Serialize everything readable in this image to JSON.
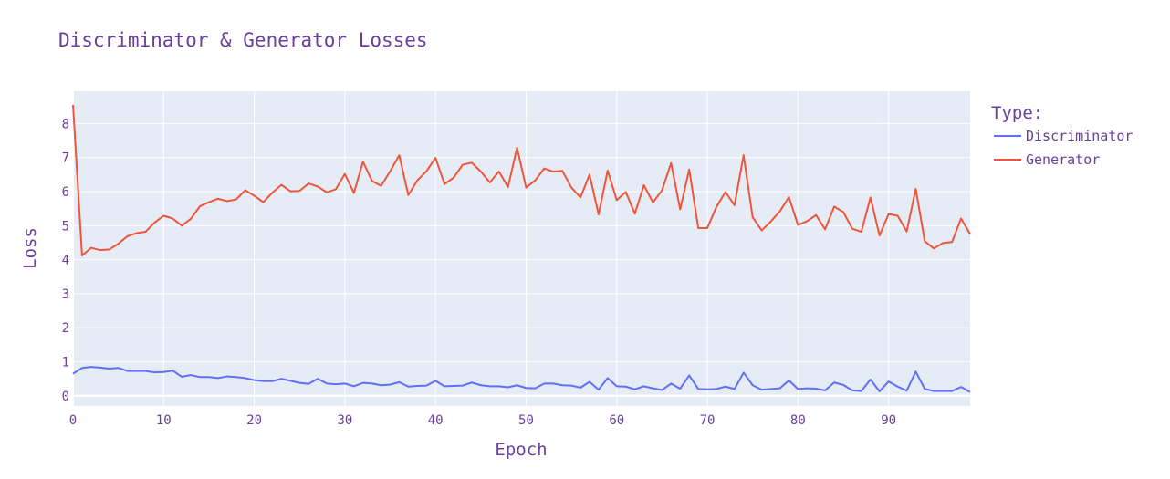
{
  "chart_data": {
    "type": "line",
    "title": "Discriminator & Generator Losses",
    "xlabel": "Epoch",
    "ylabel": "Loss",
    "xlim": [
      0,
      99
    ],
    "ylim": [
      -0.3,
      8.95
    ],
    "x_ticks": [
      0,
      10,
      20,
      30,
      40,
      50,
      60,
      70,
      80,
      90
    ],
    "y_ticks": [
      0,
      1,
      2,
      3,
      4,
      5,
      6,
      7,
      8
    ],
    "grid": true,
    "legend_title": "Type:",
    "legend_position": "right",
    "plot_bg": "#e5ecf6",
    "series": [
      {
        "name": "Discriminator",
        "color": "#636efa",
        "values": [
          0.65,
          0.82,
          0.85,
          0.83,
          0.8,
          0.82,
          0.73,
          0.73,
          0.73,
          0.69,
          0.7,
          0.74,
          0.56,
          0.61,
          0.55,
          0.55,
          0.52,
          0.57,
          0.55,
          0.52,
          0.46,
          0.43,
          0.43,
          0.5,
          0.44,
          0.38,
          0.35,
          0.5,
          0.36,
          0.34,
          0.36,
          0.28,
          0.38,
          0.36,
          0.31,
          0.33,
          0.4,
          0.27,
          0.29,
          0.3,
          0.44,
          0.28,
          0.29,
          0.3,
          0.39,
          0.31,
          0.28,
          0.28,
          0.25,
          0.31,
          0.23,
          0.22,
          0.36,
          0.36,
          0.31,
          0.3,
          0.24,
          0.41,
          0.18,
          0.52,
          0.28,
          0.27,
          0.19,
          0.28,
          0.22,
          0.17,
          0.36,
          0.21,
          0.6,
          0.2,
          0.19,
          0.2,
          0.27,
          0.2,
          0.68,
          0.31,
          0.18,
          0.2,
          0.22,
          0.45,
          0.2,
          0.22,
          0.21,
          0.16,
          0.39,
          0.32,
          0.16,
          0.14,
          0.48,
          0.13,
          0.42,
          0.27,
          0.15,
          0.71,
          0.2,
          0.14,
          0.14,
          0.14,
          0.26,
          0.11
        ]
      },
      {
        "name": "Generator",
        "color": "#ef553b",
        "values": [
          8.55,
          4.12,
          4.35,
          4.28,
          4.3,
          4.47,
          4.69,
          4.78,
          4.82,
          5.09,
          5.29,
          5.21,
          5.0,
          5.2,
          5.57,
          5.69,
          5.79,
          5.72,
          5.77,
          6.04,
          5.88,
          5.69,
          5.97,
          6.2,
          6.01,
          6.02,
          6.24,
          6.15,
          5.98,
          6.07,
          6.52,
          5.96,
          6.88,
          6.31,
          6.17,
          6.6,
          7.07,
          5.9,
          6.33,
          6.6,
          6.99,
          6.22,
          6.41,
          6.79,
          6.85,
          6.59,
          6.27,
          6.59,
          6.13,
          7.29,
          6.12,
          6.33,
          6.68,
          6.59,
          6.61,
          6.12,
          5.83,
          6.5,
          5.33,
          6.62,
          5.75,
          5.99,
          5.35,
          6.19,
          5.68,
          6.04,
          6.84,
          5.48,
          6.65,
          4.93,
          4.93,
          5.55,
          5.99,
          5.6,
          7.07,
          5.25,
          4.86,
          5.12,
          5.42,
          5.84,
          5.02,
          5.13,
          5.31,
          4.89,
          5.56,
          5.4,
          4.91,
          4.82,
          5.83,
          4.71,
          5.34,
          5.29,
          4.83,
          6.08,
          4.54,
          4.33,
          4.49,
          4.52,
          5.21,
          4.75
        ]
      }
    ]
  }
}
